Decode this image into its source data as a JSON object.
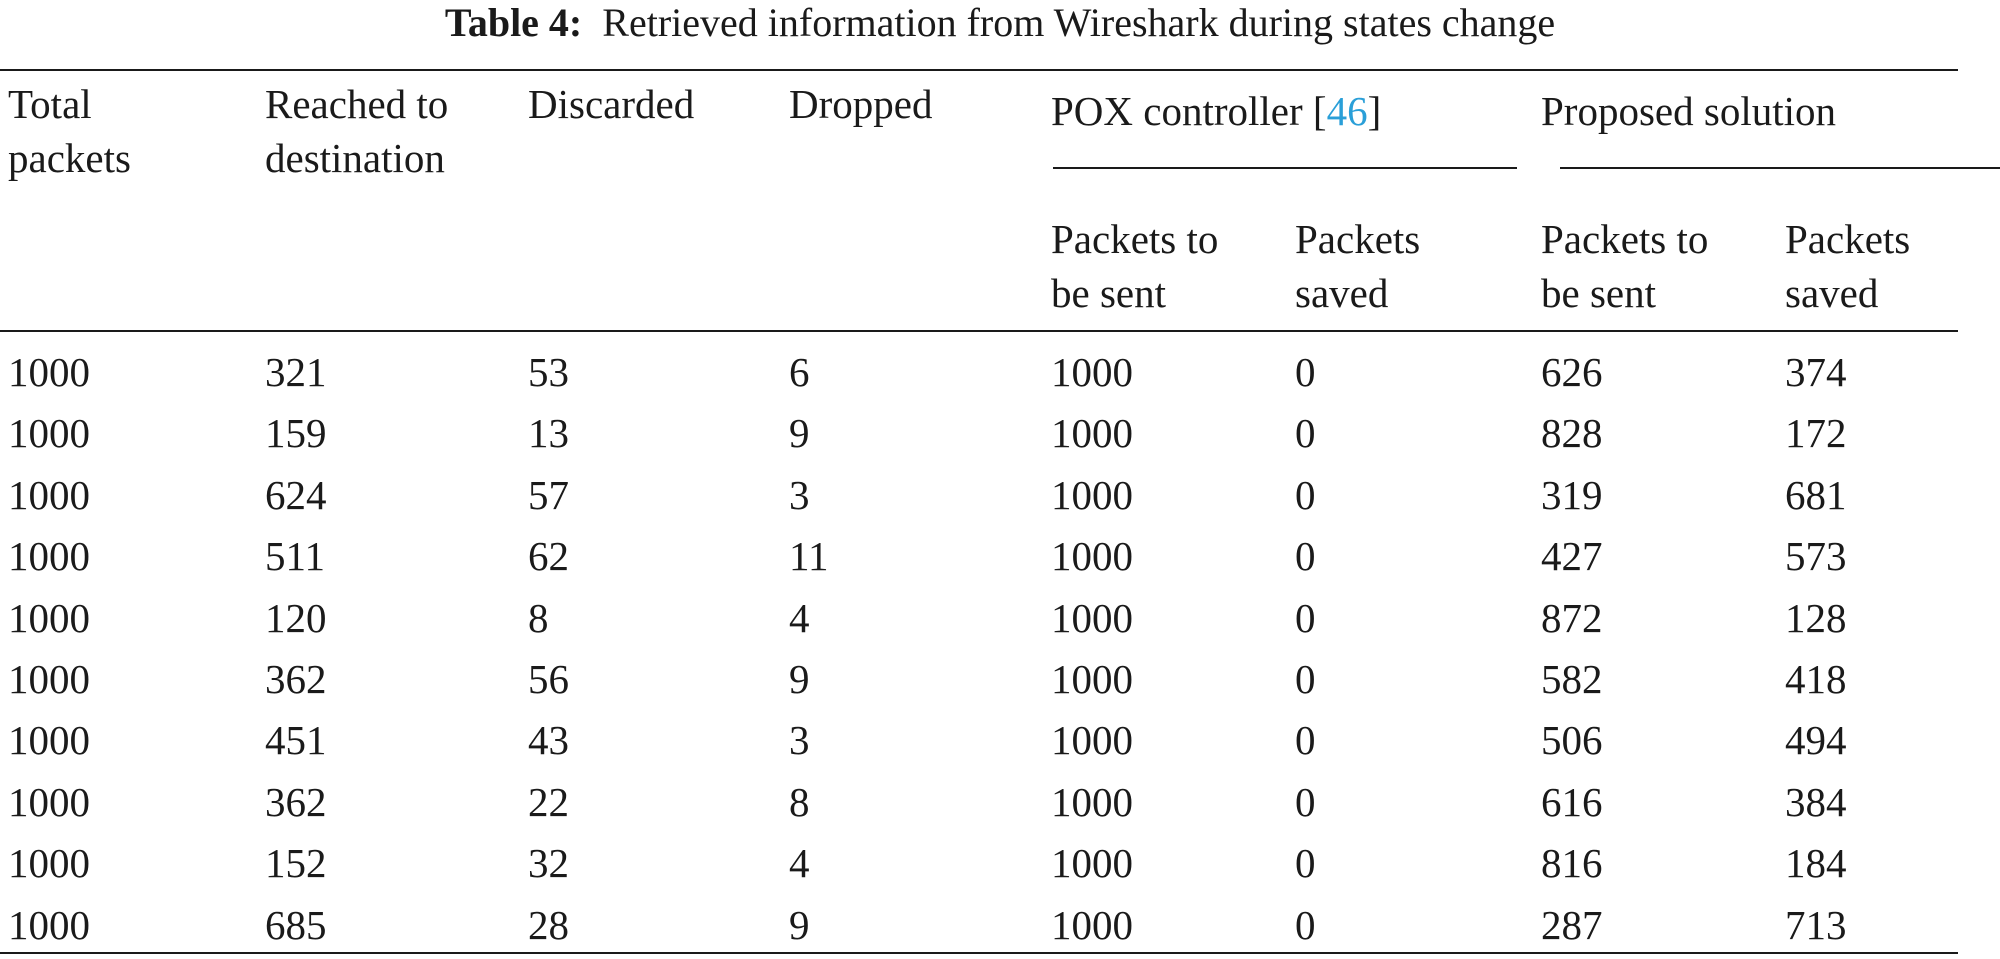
{
  "caption": {
    "label": "Table 4:",
    "text": "Retrieved information from Wireshark during states change"
  },
  "headers": {
    "total_packets": [
      "Total",
      "packets"
    ],
    "reached": [
      "Reached to",
      "destination"
    ],
    "discarded": "Discarded",
    "dropped": "Dropped",
    "pox_group": {
      "prefix": "POX controller [",
      "ref": "46",
      "suffix": "]"
    },
    "proposed_group": "Proposed solution",
    "pox_sent": [
      "Packets to",
      "be sent"
    ],
    "pox_saved": [
      "Packets",
      "saved"
    ],
    "prop_sent": [
      "Packets to",
      "be sent"
    ],
    "prop_saved": [
      "Packets",
      "saved"
    ]
  },
  "colors": {
    "reference_link": "#2a9fd8"
  },
  "rows": [
    [
      "1000",
      "321",
      "53",
      "6",
      "1000",
      "0",
      "626",
      "374"
    ],
    [
      "1000",
      "159",
      "13",
      "9",
      "1000",
      "0",
      "828",
      "172"
    ],
    [
      "1000",
      "624",
      "57",
      "3",
      "1000",
      "0",
      "319",
      "681"
    ],
    [
      "1000",
      "511",
      "62",
      "11",
      "1000",
      "0",
      "427",
      "573"
    ],
    [
      "1000",
      "120",
      "8",
      "4",
      "1000",
      "0",
      "872",
      "128"
    ],
    [
      "1000",
      "362",
      "56",
      "9",
      "1000",
      "0",
      "582",
      "418"
    ],
    [
      "1000",
      "451",
      "43",
      "3",
      "1000",
      "0",
      "506",
      "494"
    ],
    [
      "1000",
      "362",
      "22",
      "8",
      "1000",
      "0",
      "616",
      "384"
    ],
    [
      "1000",
      "152",
      "32",
      "4",
      "1000",
      "0",
      "816",
      "184"
    ],
    [
      "1000",
      "685",
      "28",
      "9",
      "1000",
      "0",
      "287",
      "713"
    ]
  ]
}
